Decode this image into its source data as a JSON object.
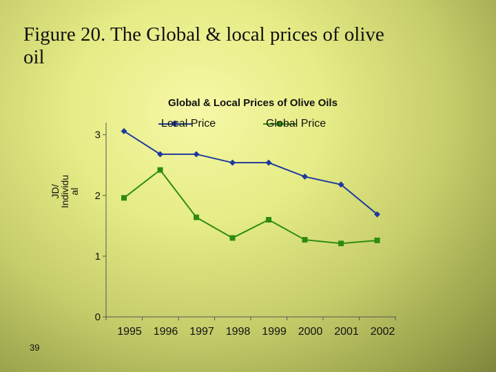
{
  "slide": {
    "title": "Figure 20. The Global & local prices of olive\n oil",
    "page_number": "39"
  },
  "chart_data": {
    "type": "line",
    "title": "Global & Local Prices of Olive Oils",
    "xlabel": "",
    "ylabel": "JD/\nIndividu\nal",
    "categories": [
      "1995",
      "1996",
      "1997",
      "1998",
      "1999",
      "2000",
      "2001",
      "2002"
    ],
    "yticks": [
      "0",
      "1",
      "2",
      "3"
    ],
    "ylim": [
      0,
      3.2
    ],
    "grid": false,
    "legend": "top",
    "series": [
      {
        "name": "Local Price",
        "values": [
          3.06,
          2.68,
          2.68,
          2.54,
          2.54,
          2.31,
          2.18,
          1.69
        ],
        "color": "#1f3a9c",
        "marker": "diamond"
      },
      {
        "name": "Global Price",
        "values": [
          1.96,
          2.42,
          1.64,
          1.3,
          1.6,
          1.27,
          1.21,
          1.26
        ],
        "color": "#2e8b12",
        "marker": "square"
      }
    ]
  }
}
